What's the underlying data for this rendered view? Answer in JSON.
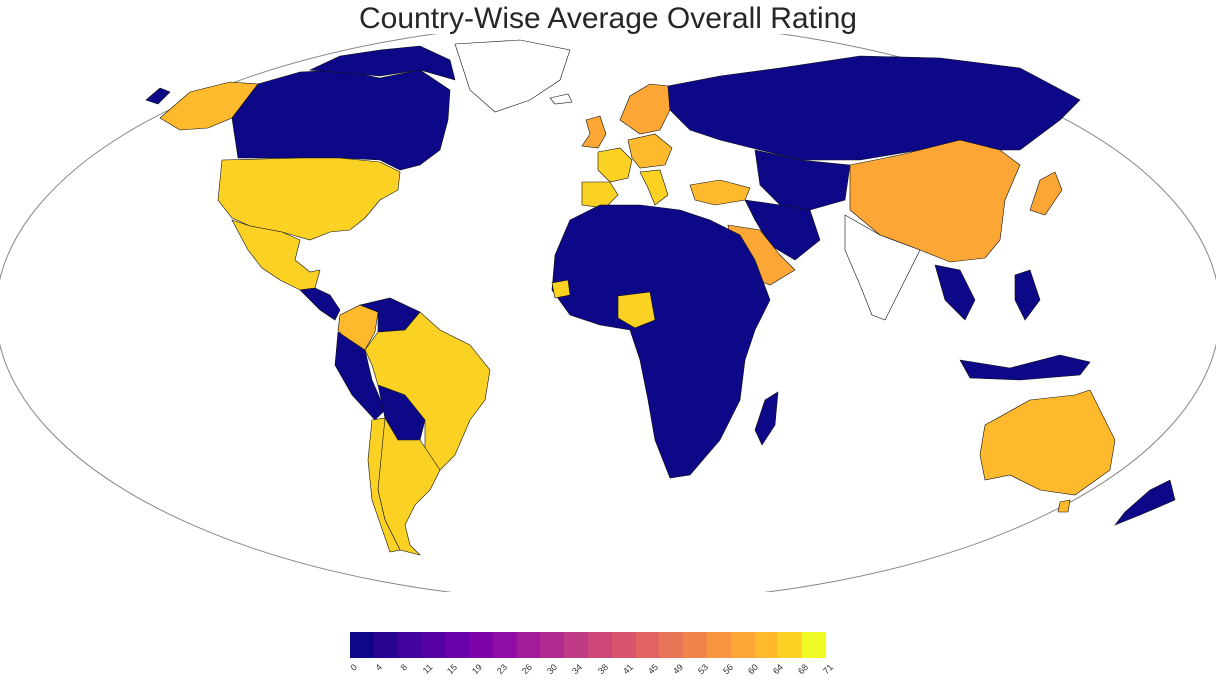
{
  "title": "Country-Wise Average Overall Rating",
  "colors": {
    "low": "#0d0887",
    "ocean": "#ffffff",
    "outline": "#888888",
    "border": "#111111"
  },
  "legend": {
    "ticks": [
      "0",
      "4",
      "8",
      "11",
      "15",
      "19",
      "23",
      "26",
      "30",
      "34",
      "38",
      "41",
      "45",
      "49",
      "53",
      "56",
      "60",
      "64",
      "68",
      "71"
    ],
    "colors": [
      "#0d0887",
      "#2a0593",
      "#41049d",
      "#5601a4",
      "#6a00a8",
      "#7e03a8",
      "#8f0da4",
      "#a11b9b",
      "#b12a90",
      "#bf3984",
      "#cc4778",
      "#d6556d",
      "#e16462",
      "#ea7457",
      "#f2844b",
      "#f89540",
      "#fca636",
      "#feba2c",
      "#fbd124",
      "#f0f921"
    ]
  },
  "chart_data": {
    "type": "choropleth",
    "title": "Country-Wise Average Overall Rating",
    "colorbar_range": [
      0,
      71
    ],
    "regions": [
      {
        "name": "United States",
        "value": 64
      },
      {
        "name": "Mexico",
        "value": 64
      },
      {
        "name": "Canada",
        "value": 0
      },
      {
        "name": "Alaska",
        "value": 62
      },
      {
        "name": "Brazil",
        "value": 67
      },
      {
        "name": "Argentina",
        "value": 67
      },
      {
        "name": "Colombia",
        "value": 63
      },
      {
        "name": "Venezuela",
        "value": 0
      },
      {
        "name": "Peru",
        "value": 0
      },
      {
        "name": "Bolivia",
        "value": 0
      },
      {
        "name": "United Kingdom",
        "value": 58
      },
      {
        "name": "France",
        "value": 66
      },
      {
        "name": "Spain",
        "value": 67
      },
      {
        "name": "Italy",
        "value": 67
      },
      {
        "name": "Germany",
        "value": 63
      },
      {
        "name": "Norway",
        "value": 58
      },
      {
        "name": "Sweden",
        "value": 58
      },
      {
        "name": "Turkey",
        "value": 63
      },
      {
        "name": "Saudi Arabia",
        "value": 60
      },
      {
        "name": "China",
        "value": 58
      },
      {
        "name": "Japan",
        "value": 60
      },
      {
        "name": "Australia",
        "value": 61
      },
      {
        "name": "Nigeria",
        "value": 64
      },
      {
        "name": "Senegal",
        "value": 66
      },
      {
        "name": "Russia",
        "value": 0
      },
      {
        "name": "Africa (rest)",
        "value": 0
      },
      {
        "name": "India",
        "value": null
      }
    ]
  }
}
